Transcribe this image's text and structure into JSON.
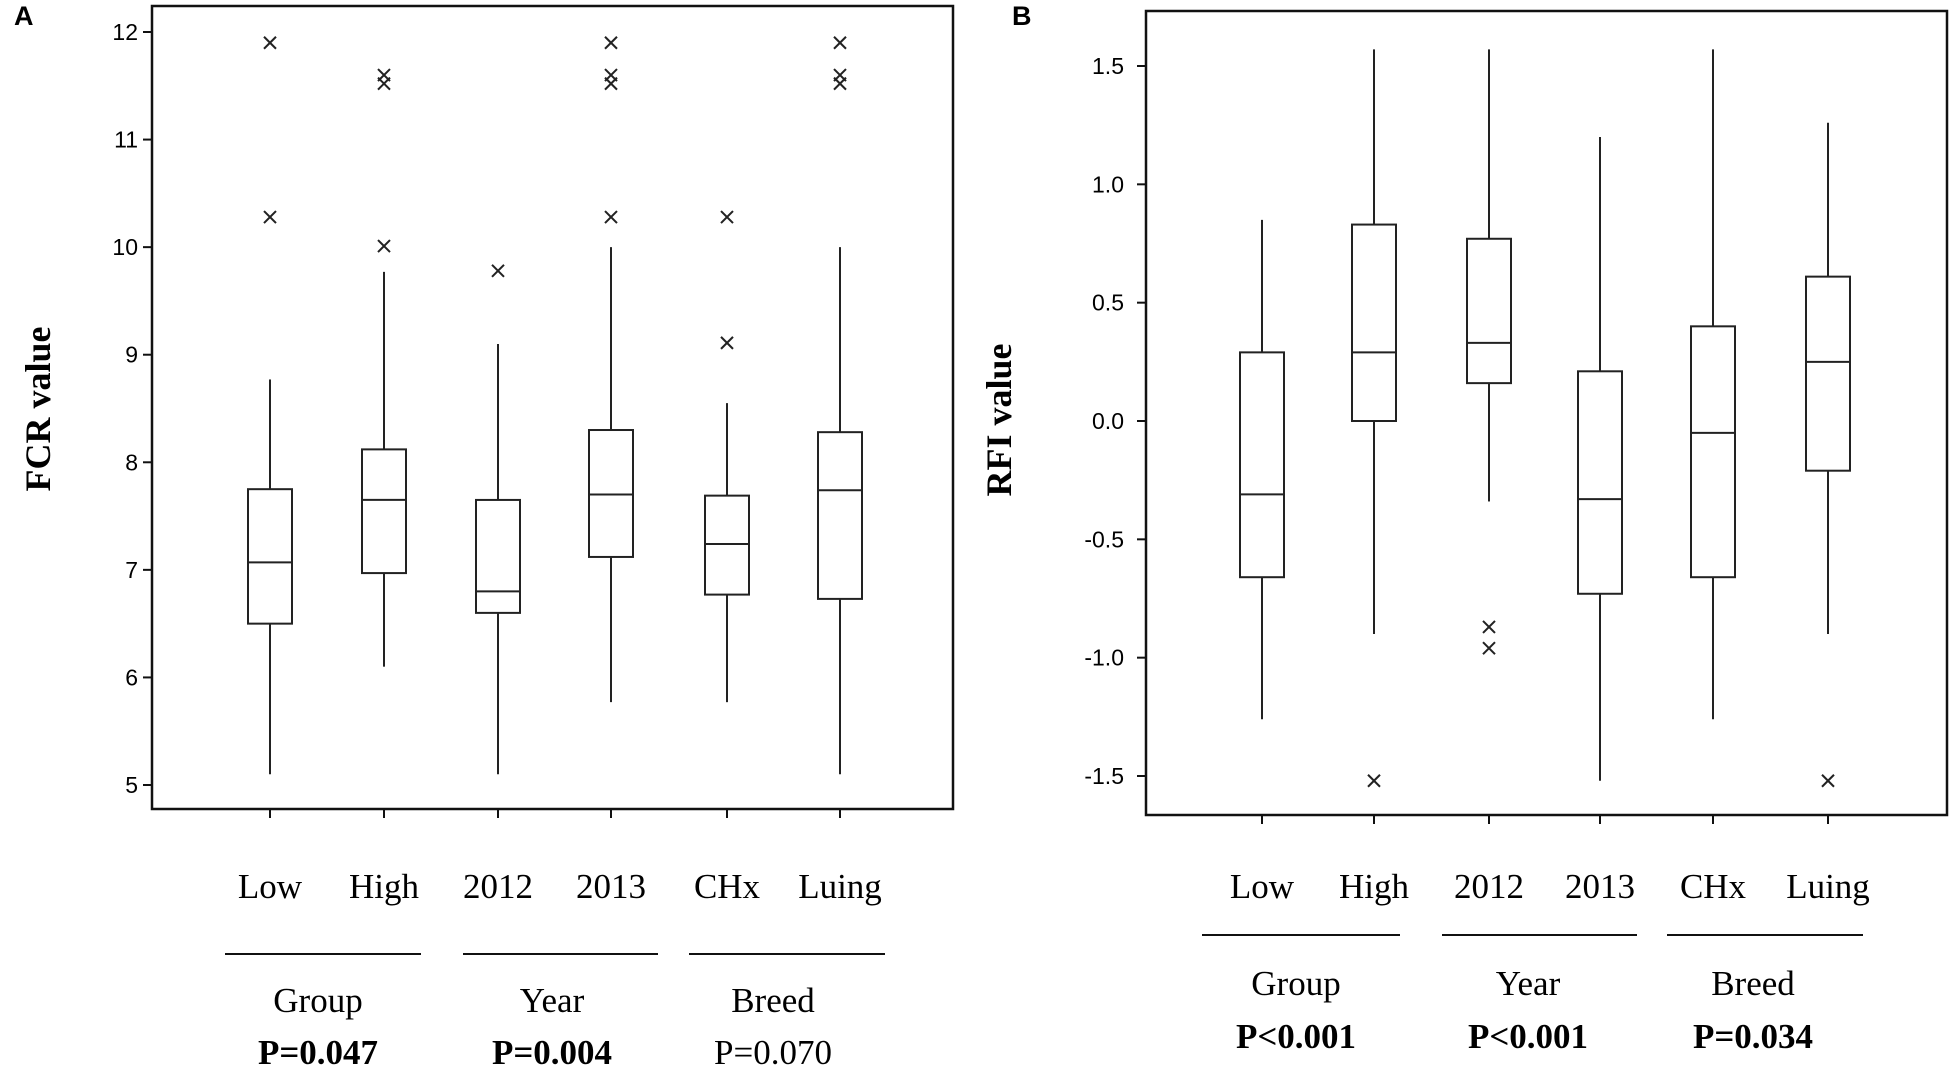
{
  "chart_data": [
    {
      "type": "boxplot",
      "panel_label": "A",
      "ylabel": "FCR value",
      "ylim": [
        4.8,
        12.3
      ],
      "yticks": [
        "5",
        "6",
        "7",
        "8",
        "9",
        "10",
        "11",
        "12"
      ],
      "ytick_values": [
        5,
        6,
        7,
        8,
        9,
        10,
        11,
        12
      ],
      "categories": [
        "Low",
        "High",
        "2012",
        "2013",
        "CHx",
        "Luing"
      ],
      "boxes": [
        {
          "q1": 6.5,
          "median": 7.07,
          "q3": 7.75,
          "whisker_low": 5.1,
          "whisker_high": 8.77,
          "outliers": [
            10.28,
            11.9
          ]
        },
        {
          "q1": 6.97,
          "median": 7.65,
          "q3": 8.12,
          "whisker_low": 6.1,
          "whisker_high": 9.77,
          "outliers": [
            10.01,
            11.52,
            11.6
          ]
        },
        {
          "q1": 6.6,
          "median": 6.8,
          "q3": 7.65,
          "whisker_low": 5.1,
          "whisker_high": 9.1,
          "outliers": [
            9.78
          ]
        },
        {
          "q1": 7.12,
          "median": 7.7,
          "q3": 8.3,
          "whisker_low": 5.77,
          "whisker_high": 10.0,
          "outliers": [
            10.28,
            11.52,
            11.6,
            11.9
          ]
        },
        {
          "q1": 6.77,
          "median": 7.24,
          "q3": 7.69,
          "whisker_low": 5.77,
          "whisker_high": 8.55,
          "outliers": [
            9.11,
            10.28
          ]
        },
        {
          "q1": 6.73,
          "median": 7.74,
          "q3": 8.28,
          "whisker_low": 5.1,
          "whisker_high": 10.0,
          "outliers": [
            11.52,
            11.6,
            11.9
          ]
        }
      ],
      "groups": [
        {
          "name": "Group",
          "p": "P=0.047",
          "significant": true
        },
        {
          "name": "Year",
          "p": "P=0.004",
          "significant": true
        },
        {
          "name": "Breed",
          "p": "P=0.070",
          "significant": false
        }
      ]
    },
    {
      "type": "boxplot",
      "panel_label": "B",
      "ylabel": "RFI value",
      "ylim": [
        -1.68,
        1.72
      ],
      "yticks": [
        "1.5",
        "1.0",
        "0.5",
        "0.0",
        "-0.5",
        "-1.0",
        "-1.5"
      ],
      "ytick_values": [
        1.5,
        1.0,
        0.5,
        0.0,
        -0.5,
        -1.0,
        -1.5
      ],
      "categories": [
        "Low",
        "High",
        "2012",
        "2013",
        "CHx",
        "Luing"
      ],
      "boxes": [
        {
          "q1": -0.66,
          "median": -0.31,
          "q3": 0.29,
          "whisker_low": -1.26,
          "whisker_high": 0.85,
          "outliers": []
        },
        {
          "q1": 0.0,
          "median": 0.29,
          "q3": 0.83,
          "whisker_low": -0.9,
          "whisker_high": 1.57,
          "outliers": [
            -1.52
          ]
        },
        {
          "q1": 0.16,
          "median": 0.33,
          "q3": 0.77,
          "whisker_low": -0.34,
          "whisker_high": 1.57,
          "outliers": [
            -0.87,
            -0.96
          ]
        },
        {
          "q1": -0.73,
          "median": -0.33,
          "q3": 0.21,
          "whisker_low": -1.52,
          "whisker_high": 1.2,
          "outliers": []
        },
        {
          "q1": -0.66,
          "median": -0.05,
          "q3": 0.4,
          "whisker_low": -1.26,
          "whisker_high": 1.57,
          "outliers": []
        },
        {
          "q1": -0.21,
          "median": 0.25,
          "q3": 0.61,
          "whisker_low": -0.9,
          "whisker_high": 1.26,
          "outliers": [
            -1.52
          ]
        }
      ],
      "groups": [
        {
          "name": "Group",
          "p": "P<0.001",
          "significant": true
        },
        {
          "name": "Year",
          "p": "P<0.001",
          "significant": true
        },
        {
          "name": "Breed",
          "p": "P=0.034",
          "significant": true
        }
      ]
    }
  ]
}
